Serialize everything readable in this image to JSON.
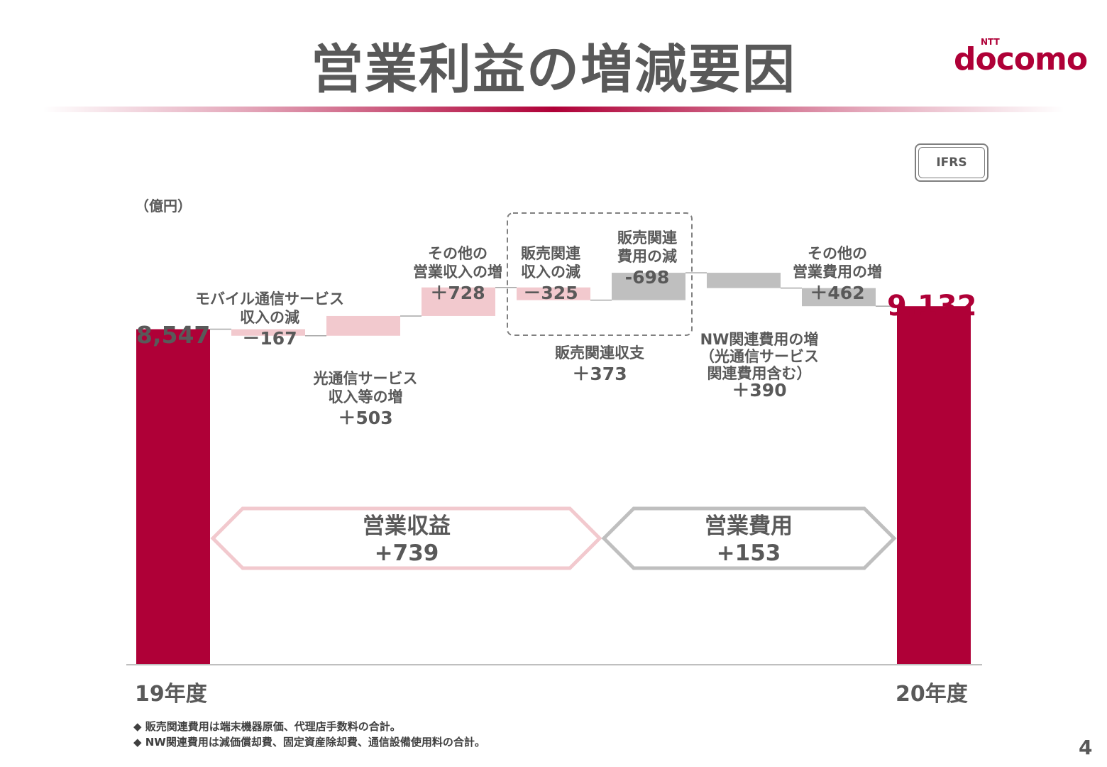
{
  "title": "営業利益の増減要因",
  "logo": {
    "ntt": "NTT",
    "word": "docomo"
  },
  "badge": "IFRS",
  "unit_label": "（億円）",
  "chart_data": {
    "type": "waterfall",
    "unit": "億円",
    "categories": [
      "19年度",
      "モバイル通信サービス収入の減",
      "光通信サービス収入等の増",
      "その他の営業収入の増",
      "販売関連収入の減",
      "販売関連費用の減",
      "NW関連費用の増（光通信サービス関連費用含む）",
      "その他の営業費用の増",
      "20年度"
    ],
    "start": {
      "label": "19年度",
      "value": 8547,
      "display": "8,547"
    },
    "end": {
      "label": "20年度",
      "value": 9132,
      "display": "9,132"
    },
    "steps": [
      {
        "lines": [
          "モバイル通信サービス",
          "収入の減"
        ],
        "value": -167,
        "display": "－167",
        "group": "revenue"
      },
      {
        "lines": [
          "光通信サービス",
          "収入等の増"
        ],
        "value": 503,
        "display": "＋503",
        "group": "revenue"
      },
      {
        "lines": [
          "その他の",
          "営業収入の増"
        ],
        "value": 728,
        "display": "＋728",
        "group": "revenue"
      },
      {
        "lines": [
          "販売関連",
          "収入の減"
        ],
        "value": -325,
        "display": "－325",
        "group": "revenue"
      },
      {
        "lines": [
          "販売関連",
          "費用の減"
        ],
        "value": 698,
        "display": "-698",
        "group": "expense"
      },
      {
        "lines": [
          "NW関連費用の増",
          "（光通信サービス",
          "関連費用含む）"
        ],
        "value": -390,
        "display": "＋390",
        "group": "expense"
      },
      {
        "lines": [
          "その他の",
          "営業費用の増"
        ],
        "value": -462,
        "display": "＋462",
        "group": "expense"
      }
    ],
    "sales_net": {
      "lines": [
        "販売関連収支"
      ],
      "value": 373,
      "display": "＋373"
    },
    "summary": [
      {
        "label": "営業収益",
        "value": 739,
        "display": "+739"
      },
      {
        "label": "営業費用",
        "value": 153,
        "display": "+153"
      }
    ],
    "colors": {
      "total": "#af0037",
      "revenue": "#f2c9ce",
      "expense": "#bfbfbf",
      "revenue_arrow": "#f2c9ce",
      "expense_arrow": "#bfbfbf"
    }
  },
  "notes": [
    "◆ 販売関連費用は端末機器原価、代理店手数料の合計。",
    "◆ NW関連費用は減価償却費、固定資産除却費、通信設備使用料の合計。"
  ],
  "page_number": "4"
}
